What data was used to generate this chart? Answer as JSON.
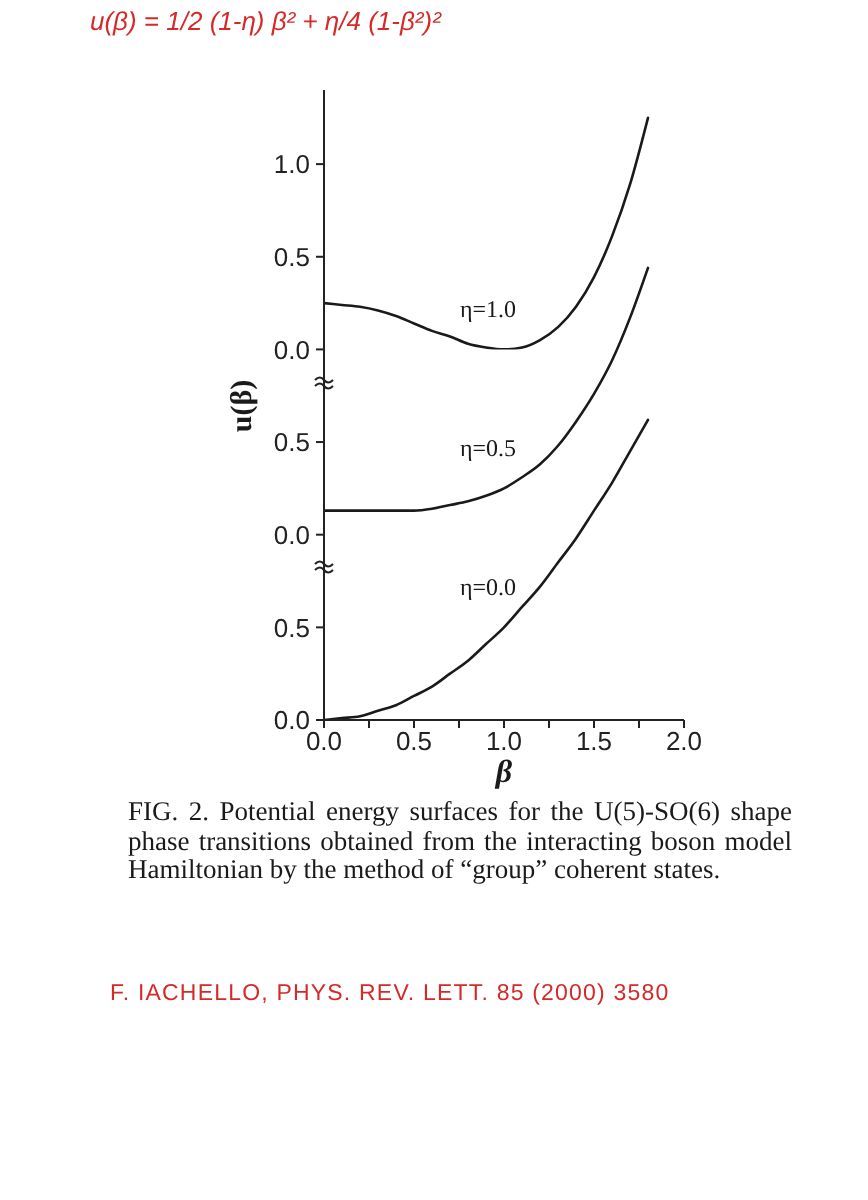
{
  "chart_data": [
    {
      "type": "line",
      "annotations": [
        "u(β) = 1/2 (1-η) β² + η/4 (1-β²)²"
      ],
      "x": [
        0,
        0.1,
        0.2,
        0.3,
        0.4,
        0.5,
        0.6,
        0.7,
        0.8,
        0.9,
        1.0,
        1.1,
        1.2,
        1.3,
        1.4,
        1.5,
        1.6,
        1.7,
        1.8
      ],
      "series": [
        {
          "name": "η=1.0",
          "color": "#1a1a1a",
          "values": [
            0.25,
            0.24,
            0.23,
            0.21,
            0.18,
            0.14,
            0.1,
            0.07,
            0.03,
            0.01,
            0,
            0.01,
            0.05,
            0.12,
            0.23,
            0.39,
            0.61,
            0.89,
            1.25
          ]
        }
      ],
      "xlim": [
        0,
        2
      ],
      "ylim": [
        0,
        1.4
      ],
      "yticks": [
        {
          "value": 0,
          "label": "0.0"
        },
        {
          "value": 0.5,
          "label": "0.5"
        },
        {
          "value": 1,
          "label": "1.0"
        }
      ],
      "tick_labels": "y",
      "marker": "none",
      "line_style": "solid"
    },
    {
      "type": "line",
      "x": [
        0,
        0.1,
        0.2,
        0.3,
        0.4,
        0.5,
        0.6,
        0.7,
        0.8,
        0.9,
        1.0,
        1.1,
        1.2,
        1.3,
        1.4,
        1.5,
        1.6,
        1.7,
        1.8
      ],
      "series": [
        {
          "name": "η=0.5",
          "color": "#1a1a1a",
          "values": [
            0.13,
            0.13,
            0.13,
            0.13,
            0.13,
            0.13,
            0.14,
            0.16,
            0.18,
            0.21,
            0.25,
            0.31,
            0.38,
            0.48,
            0.61,
            0.76,
            0.94,
            1.17,
            1.44
          ]
        }
      ],
      "xlim": [
        0,
        2
      ],
      "ylim": [
        0,
        2.4
      ],
      "yticks": [
        {
          "value": 0,
          "label": "0.0"
        },
        {
          "value": 0.5,
          "label": "0.5"
        }
      ],
      "tick_labels": "y",
      "marker": "none",
      "line_style": "solid"
    },
    {
      "type": "line",
      "xlabel": "β",
      "ylabel": "u(β)",
      "annotations": [
        "FIG. 2.  Potential energy surfaces for the U(5)-SO(6) shape phase transitions obtained from the interacting boson model Hamiltonian by the method of “group” coherent states.",
        "F. IACHELLO, PHYS. REV. LETT. 85 (2000) 3580"
      ],
      "x": [
        0,
        0.1,
        0.2,
        0.3,
        0.4,
        0.5,
        0.6,
        0.7,
        0.8,
        0.9,
        1.0,
        1.1,
        1.2,
        1.3,
        1.4,
        1.5,
        1.6,
        1.7,
        1.8
      ],
      "series": [
        {
          "name": "η=0.0",
          "color": "#1a1a1a",
          "values": [
            0,
            0.01,
            0.02,
            0.05,
            0.08,
            0.13,
            0.18,
            0.25,
            0.32,
            0.41,
            0.5,
            0.61,
            0.72,
            0.85,
            0.98,
            1.13,
            1.28,
            1.45,
            1.62
          ]
        }
      ],
      "xlim": [
        0,
        2
      ],
      "xticks": [
        {
          "value": 0,
          "label": "0.0"
        },
        {
          "value": 0.25,
          "label": null
        },
        {
          "value": 0.5,
          "label": "0.5"
        },
        {
          "value": 0.75,
          "label": null
        },
        {
          "value": 1,
          "label": "1.0"
        },
        {
          "value": 1.25,
          "label": null
        },
        {
          "value": 1.5,
          "label": "1.5"
        },
        {
          "value": 1.75,
          "label": null
        },
        {
          "value": 2,
          "label": "2.0"
        }
      ],
      "ylim": [
        0,
        3.4
      ],
      "yticks": [
        {
          "value": 0,
          "label": "0.0"
        },
        {
          "value": 0.5,
          "label": "0.5"
        }
      ],
      "marker": "none",
      "line_style": "solid"
    }
  ]
}
